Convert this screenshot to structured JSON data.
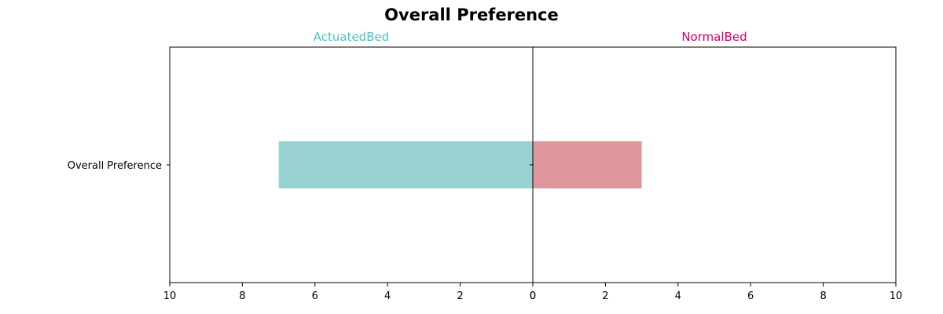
{
  "chart_data": {
    "type": "bar",
    "orientation": "horizontal-diverging",
    "title": "Overall Preference",
    "categories": [
      "Overall Preference"
    ],
    "series": [
      {
        "name": "ActuatedBed",
        "values": [
          7
        ],
        "color": "#99d2d3",
        "label_color": "#4dc0c4"
      },
      {
        "name": "NormalBed",
        "values": [
          3
        ],
        "color": "#de969a",
        "label_color": "#d3006f"
      }
    ],
    "xlim": [
      0,
      10
    ],
    "xticks": [
      0,
      2,
      4,
      6,
      8,
      10
    ],
    "grid": false,
    "legend": "none"
  }
}
